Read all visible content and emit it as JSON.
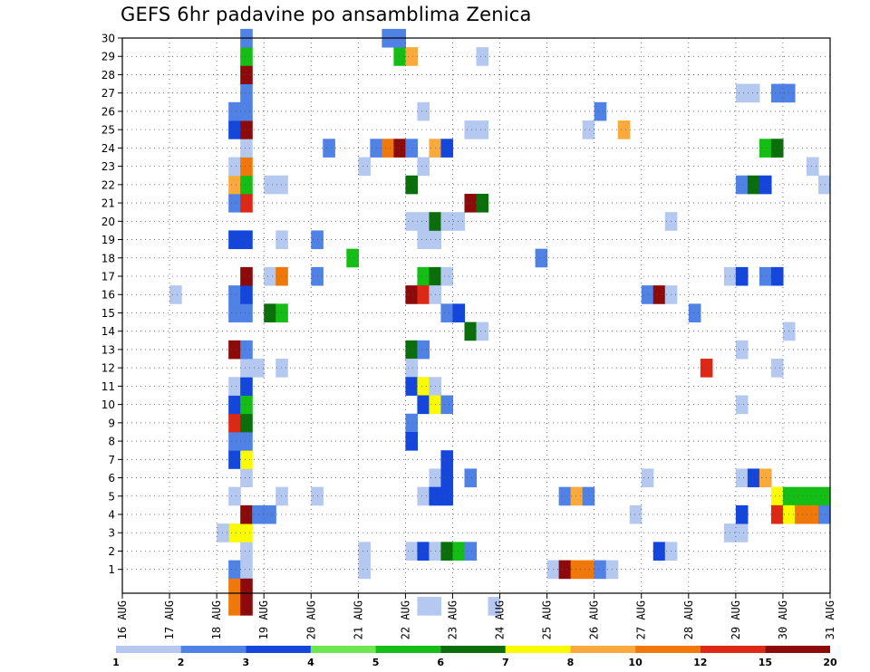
{
  "chart_data": {
    "type": "heatmap",
    "title": "GEFS 6hr padavine po ansamblima Zenica",
    "xlabel": "",
    "ylabel": "",
    "x_ticks": [
      "16 AUG",
      "17 AUG",
      "18 AUG",
      "19 AUG",
      "20 AUG",
      "21 AUG",
      "22 AUG",
      "23 AUG",
      "24 AUG",
      "25 AUG",
      "26 AUG",
      "27 AUG",
      "28 AUG",
      "29 AUG",
      "30 AUG",
      "31 AUG"
    ],
    "y_ticks": [
      "1",
      "2",
      "3",
      "4",
      "5",
      "6",
      "7",
      "8",
      "9",
      "10",
      "11",
      "12",
      "13",
      "14",
      "15",
      "16",
      "17",
      "18",
      "19",
      "20",
      "21",
      "22",
      "23",
      "24",
      "25",
      "26",
      "27",
      "28",
      "29",
      "30"
    ],
    "grid": true,
    "colorbar": {
      "labels": [
        "1",
        "2",
        "3",
        "4",
        "5",
        "6",
        "7",
        "8",
        "10",
        "12",
        "15",
        "20"
      ],
      "colors": [
        "#b4c8f0",
        "#5082e6",
        "#1446dc",
        "#6ee650",
        "#14be14",
        "#0a6e0a",
        "#fafa00",
        "#faaa3c",
        "#f0780a",
        "#dc2814",
        "#8c0a0a"
      ]
    },
    "x_range_days": [
      0,
      15
    ],
    "y_range": [
      0,
      30
    ],
    "cells": [
      [
        2.25,
        1,
        2
      ],
      [
        2.5,
        1,
        1
      ],
      [
        2.25,
        0,
        10
      ],
      [
        2.5,
        0,
        15
      ],
      [
        2.5,
        2,
        1
      ],
      [
        2.25,
        3,
        7
      ],
      [
        2.5,
        3,
        7
      ],
      [
        2.0,
        3,
        1
      ],
      [
        2.5,
        4,
        20
      ],
      [
        2.75,
        4,
        2
      ],
      [
        2.25,
        5,
        1
      ],
      [
        2.5,
        6,
        1
      ],
      [
        2.25,
        7,
        3
      ],
      [
        2.5,
        7,
        7
      ],
      [
        2.25,
        8,
        2
      ],
      [
        2.5,
        8,
        2
      ],
      [
        2.25,
        9,
        12
      ],
      [
        2.5,
        9,
        6
      ],
      [
        2.25,
        10,
        3
      ],
      [
        2.5,
        10,
        5
      ],
      [
        2.25,
        11,
        1
      ],
      [
        2.5,
        11,
        3
      ],
      [
        2.5,
        12,
        1
      ],
      [
        2.75,
        12,
        1
      ],
      [
        2.25,
        13,
        15
      ],
      [
        2.5,
        13,
        2
      ],
      [
        2.25,
        15,
        2
      ],
      [
        2.5,
        15,
        2
      ],
      [
        2.25,
        16,
        2
      ],
      [
        2.5,
        16,
        3
      ],
      [
        1.0,
        16,
        1
      ],
      [
        2.5,
        17,
        20
      ],
      [
        2.25,
        19,
        3
      ],
      [
        2.5,
        19,
        3
      ],
      [
        2.25,
        21,
        2
      ],
      [
        2.5,
        21,
        12
      ],
      [
        2.25,
        22,
        8
      ],
      [
        2.5,
        22,
        5
      ],
      [
        2.25,
        23,
        1
      ],
      [
        2.5,
        23,
        10
      ],
      [
        2.5,
        24,
        1
      ],
      [
        2.25,
        25,
        3
      ],
      [
        2.5,
        25,
        20
      ],
      [
        2.25,
        26,
        2
      ],
      [
        2.5,
        26,
        2
      ],
      [
        2.5,
        27,
        2
      ],
      [
        2.5,
        28,
        15
      ],
      [
        2.5,
        29,
        5
      ],
      [
        2.5,
        30,
        2
      ],
      [
        2.25,
        -1,
        10
      ],
      [
        2.5,
        -1,
        15
      ],
      [
        3.0,
        15,
        6
      ],
      [
        3.25,
        15,
        5
      ],
      [
        3.0,
        17,
        1
      ],
      [
        3.25,
        17,
        10
      ],
      [
        3.25,
        12,
        1
      ],
      [
        3.25,
        19,
        1
      ],
      [
        3.25,
        5,
        1
      ],
      [
        3.0,
        4,
        2
      ],
      [
        3.0,
        22,
        1
      ],
      [
        3.25,
        22,
        1
      ],
      [
        4.0,
        19,
        2
      ],
      [
        4.0,
        17,
        2
      ],
      [
        4.0,
        5,
        1
      ],
      [
        4.25,
        24,
        2
      ],
      [
        4.75,
        18,
        5
      ],
      [
        5.0,
        23,
        1
      ],
      [
        5.0,
        1,
        1
      ],
      [
        5.25,
        24,
        2
      ],
      [
        5.5,
        24,
        10
      ],
      [
        5.75,
        24,
        20
      ],
      [
        6.0,
        24,
        2
      ],
      [
        5.75,
        29,
        5
      ],
      [
        6.0,
        29,
        8
      ],
      [
        5.5,
        30,
        2
      ],
      [
        5.75,
        30,
        2
      ],
      [
        6.25,
        26,
        1
      ],
      [
        6.25,
        23,
        1
      ],
      [
        6.25,
        19,
        1
      ],
      [
        6.5,
        19,
        1
      ],
      [
        6.25,
        17,
        5
      ],
      [
        6.5,
        17,
        6
      ],
      [
        6.75,
        17,
        1
      ],
      [
        6.0,
        16,
        15
      ],
      [
        6.25,
        16,
        12
      ],
      [
        6.5,
        16,
        1
      ],
      [
        6.0,
        22,
        6
      ],
      [
        6.0,
        20,
        1
      ],
      [
        6.25,
        20,
        1
      ],
      [
        6.5,
        20,
        6
      ],
      [
        6.75,
        20,
        1
      ],
      [
        7.0,
        20,
        1
      ],
      [
        6.5,
        24,
        8
      ],
      [
        6.75,
        24,
        3
      ],
      [
        6.75,
        15,
        2
      ],
      [
        7.0,
        15,
        3
      ],
      [
        7.25,
        14,
        6
      ],
      [
        7.5,
        14,
        1
      ],
      [
        7.25,
        21,
        15
      ],
      [
        7.5,
        21,
        6
      ],
      [
        6.0,
        13,
        6
      ],
      [
        6.25,
        13,
        2
      ],
      [
        6.0,
        12,
        1
      ],
      [
        6.0,
        11,
        3
      ],
      [
        6.25,
        11,
        7
      ],
      [
        6.5,
        11,
        1
      ],
      [
        6.25,
        10,
        3
      ],
      [
        6.5,
        10,
        7
      ],
      [
        6.75,
        10,
        2
      ],
      [
        6.0,
        9,
        2
      ],
      [
        6.0,
        8,
        3
      ],
      [
        6.75,
        7,
        3
      ],
      [
        6.5,
        6,
        1
      ],
      [
        6.75,
        6,
        3
      ],
      [
        7.25,
        6,
        2
      ],
      [
        6.25,
        5,
        1
      ],
      [
        6.5,
        5,
        3
      ],
      [
        6.75,
        5,
        3
      ],
      [
        5.0,
        2,
        1
      ],
      [
        6.0,
        2,
        1
      ],
      [
        6.25,
        2,
        3
      ],
      [
        6.5,
        2,
        1
      ],
      [
        6.75,
        2,
        6
      ],
      [
        7.0,
        2,
        5
      ],
      [
        7.25,
        2,
        2
      ],
      [
        7.25,
        25,
        1
      ],
      [
        7.5,
        25,
        1
      ],
      [
        7.5,
        29,
        1
      ],
      [
        6.25,
        -1,
        1
      ],
      [
        6.5,
        -1,
        1
      ],
      [
        7.75,
        -1,
        1
      ],
      [
        8.75,
        18,
        2
      ],
      [
        9.0,
        1,
        1
      ],
      [
        9.25,
        1,
        15
      ],
      [
        9.5,
        1,
        10
      ],
      [
        9.75,
        1,
        10
      ],
      [
        10.0,
        1,
        2
      ],
      [
        10.25,
        1,
        1
      ],
      [
        9.25,
        5,
        2
      ],
      [
        9.5,
        5,
        8
      ],
      [
        9.75,
        5,
        2
      ],
      [
        9.75,
        25,
        1
      ],
      [
        10.0,
        26,
        2
      ],
      [
        10.5,
        25,
        8
      ],
      [
        11.0,
        16,
        2
      ],
      [
        11.25,
        16,
        20
      ],
      [
        11.5,
        16,
        1
      ],
      [
        11.5,
        20,
        1
      ],
      [
        11.0,
        6,
        1
      ],
      [
        10.75,
        4,
        1
      ],
      [
        11.25,
        2,
        3
      ],
      [
        11.5,
        2,
        1
      ],
      [
        12.0,
        15,
        2
      ],
      [
        12.25,
        12,
        12
      ],
      [
        12.75,
        3,
        1
      ],
      [
        13.0,
        3,
        1
      ],
      [
        13.0,
        4,
        3
      ],
      [
        12.75,
        17,
        1
      ],
      [
        13.0,
        17,
        3
      ],
      [
        13.0,
        13,
        1
      ],
      [
        13.0,
        10,
        1
      ],
      [
        13.0,
        6,
        1
      ],
      [
        13.25,
        6,
        3
      ],
      [
        13.5,
        6,
        8
      ],
      [
        13.0,
        22,
        2
      ],
      [
        13.25,
        22,
        6
      ],
      [
        13.5,
        22,
        3
      ],
      [
        13.0,
        27,
        1
      ],
      [
        13.25,
        27,
        1
      ],
      [
        13.75,
        27,
        2
      ],
      [
        14.0,
        27,
        2
      ],
      [
        13.5,
        24,
        5
      ],
      [
        13.75,
        24,
        6
      ],
      [
        13.5,
        17,
        2
      ],
      [
        13.75,
        17,
        3
      ],
      [
        13.75,
        12,
        1
      ],
      [
        14.0,
        14,
        1
      ],
      [
        13.75,
        5,
        7
      ],
      [
        14.0,
        5,
        5
      ],
      [
        14.25,
        5,
        5
      ],
      [
        14.5,
        5,
        5
      ],
      [
        14.75,
        5,
        5
      ],
      [
        13.75,
        4,
        12
      ],
      [
        14.0,
        4,
        7
      ],
      [
        14.25,
        4,
        10
      ],
      [
        14.5,
        4,
        10
      ],
      [
        14.75,
        4,
        2
      ],
      [
        14.5,
        23,
        1
      ],
      [
        14.75,
        22,
        1
      ]
    ]
  }
}
